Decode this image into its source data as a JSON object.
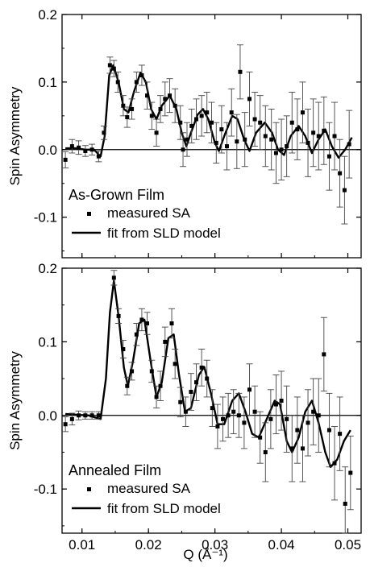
{
  "chart_data": [
    {
      "type": "scatter",
      "panel_label": "As-Grown Film",
      "ylabel": "Spin Asymmetry",
      "xlabel": "",
      "xlim": [
        0.007,
        0.052
      ],
      "ylim": [
        -0.16,
        0.2
      ],
      "xticks": [
        0.01,
        0.02,
        0.03,
        0.04,
        0.05
      ],
      "xtick_labels": [
        "",
        "",
        "",
        "",
        ""
      ],
      "yticks": [
        0.2,
        0.1,
        0.0,
        -0.1
      ],
      "ytick_labels": [
        "0.2",
        "0.1",
        "0.0",
        "-0.1"
      ],
      "reference_line_y": 0,
      "legend": [
        "measured SA",
        "fit from SLD model"
      ],
      "measured": [
        {
          "x": 0.0075,
          "y": -0.015,
          "err": 0.012
        },
        {
          "x": 0.0085,
          "y": 0.005,
          "err": 0.01
        },
        {
          "x": 0.0095,
          "y": 0.003,
          "err": 0.01
        },
        {
          "x": 0.0105,
          "y": -0.002,
          "err": 0.008
        },
        {
          "x": 0.0115,
          "y": 0.0,
          "err": 0.008
        },
        {
          "x": 0.0125,
          "y": -0.01,
          "err": 0.008
        },
        {
          "x": 0.0133,
          "y": 0.025,
          "err": 0.01
        },
        {
          "x": 0.0142,
          "y": 0.125,
          "err": 0.012
        },
        {
          "x": 0.0148,
          "y": 0.12,
          "err": 0.012
        },
        {
          "x": 0.0154,
          "y": 0.1,
          "err": 0.015
        },
        {
          "x": 0.0162,
          "y": 0.065,
          "err": 0.015
        },
        {
          "x": 0.0168,
          "y": 0.048,
          "err": 0.015
        },
        {
          "x": 0.0175,
          "y": 0.06,
          "err": 0.015
        },
        {
          "x": 0.0182,
          "y": 0.1,
          "err": 0.015
        },
        {
          "x": 0.019,
          "y": 0.11,
          "err": 0.015
        },
        {
          "x": 0.0198,
          "y": 0.08,
          "err": 0.02
        },
        {
          "x": 0.0205,
          "y": 0.05,
          "err": 0.02
        },
        {
          "x": 0.0212,
          "y": 0.025,
          "err": 0.02
        },
        {
          "x": 0.0218,
          "y": 0.06,
          "err": 0.02
        },
        {
          "x": 0.0225,
          "y": 0.075,
          "err": 0.025
        },
        {
          "x": 0.0232,
          "y": 0.08,
          "err": 0.025
        },
        {
          "x": 0.024,
          "y": 0.065,
          "err": 0.025
        },
        {
          "x": 0.0248,
          "y": 0.04,
          "err": 0.025
        },
        {
          "x": 0.0252,
          "y": 0.0,
          "err": 0.025
        },
        {
          "x": 0.0258,
          "y": 0.015,
          "err": 0.025
        },
        {
          "x": 0.0265,
          "y": 0.035,
          "err": 0.025
        },
        {
          "x": 0.0272,
          "y": 0.045,
          "err": 0.03
        },
        {
          "x": 0.028,
          "y": 0.05,
          "err": 0.03
        },
        {
          "x": 0.0288,
          "y": 0.055,
          "err": 0.03
        },
        {
          "x": 0.0295,
          "y": 0.04,
          "err": 0.03
        },
        {
          "x": 0.0302,
          "y": 0.01,
          "err": 0.03
        },
        {
          "x": 0.031,
          "y": 0.03,
          "err": 0.035
        },
        {
          "x": 0.0318,
          "y": 0.005,
          "err": 0.035
        },
        {
          "x": 0.0325,
          "y": 0.055,
          "err": 0.035
        },
        {
          "x": 0.0333,
          "y": 0.012,
          "err": 0.04
        },
        {
          "x": 0.0338,
          "y": 0.115,
          "err": 0.04
        },
        {
          "x": 0.0345,
          "y": 0.015,
          "err": 0.04
        },
        {
          "x": 0.0352,
          "y": 0.075,
          "err": 0.04
        },
        {
          "x": 0.036,
          "y": 0.045,
          "err": 0.04
        },
        {
          "x": 0.0368,
          "y": 0.04,
          "err": 0.04
        },
        {
          "x": 0.0376,
          "y": 0.02,
          "err": 0.045
        },
        {
          "x": 0.0385,
          "y": 0.015,
          "err": 0.045
        },
        {
          "x": 0.0392,
          "y": -0.005,
          "err": 0.045
        },
        {
          "x": 0.04,
          "y": 0.0,
          "err": 0.045
        },
        {
          "x": 0.0408,
          "y": 0.005,
          "err": 0.045
        },
        {
          "x": 0.0416,
          "y": 0.04,
          "err": 0.045
        },
        {
          "x": 0.0424,
          "y": 0.03,
          "err": 0.045
        },
        {
          "x": 0.0432,
          "y": 0.055,
          "err": 0.045
        },
        {
          "x": 0.044,
          "y": 0.01,
          "err": 0.05
        },
        {
          "x": 0.0448,
          "y": 0.025,
          "err": 0.05
        },
        {
          "x": 0.0456,
          "y": 0.02,
          "err": 0.05
        },
        {
          "x": 0.0464,
          "y": 0.028,
          "err": 0.05
        },
        {
          "x": 0.0472,
          "y": -0.01,
          "err": 0.05
        },
        {
          "x": 0.048,
          "y": 0.02,
          "err": 0.05
        },
        {
          "x": 0.0488,
          "y": -0.035,
          "err": 0.05
        },
        {
          "x": 0.0495,
          "y": -0.06,
          "err": 0.05
        },
        {
          "x": 0.0502,
          "y": 0.008,
          "err": 0.05
        }
      ],
      "fit": [
        {
          "x": 0.0075,
          "y": 0.002
        },
        {
          "x": 0.009,
          "y": 0.002
        },
        {
          "x": 0.0105,
          "y": 0.0
        },
        {
          "x": 0.0118,
          "y": 0.0
        },
        {
          "x": 0.0128,
          "y": -0.01
        },
        {
          "x": 0.0134,
          "y": 0.02
        },
        {
          "x": 0.0141,
          "y": 0.11
        },
        {
          "x": 0.0147,
          "y": 0.125
        },
        {
          "x": 0.0155,
          "y": 0.1
        },
        {
          "x": 0.0163,
          "y": 0.06
        },
        {
          "x": 0.017,
          "y": 0.055
        },
        {
          "x": 0.0178,
          "y": 0.085
        },
        {
          "x": 0.0188,
          "y": 0.114
        },
        {
          "x": 0.0196,
          "y": 0.1
        },
        {
          "x": 0.0204,
          "y": 0.06
        },
        {
          "x": 0.0212,
          "y": 0.045
        },
        {
          "x": 0.022,
          "y": 0.065
        },
        {
          "x": 0.0232,
          "y": 0.08
        },
        {
          "x": 0.0242,
          "y": 0.06
        },
        {
          "x": 0.025,
          "y": 0.025
        },
        {
          "x": 0.0257,
          "y": 0.005
        },
        {
          "x": 0.0264,
          "y": 0.025
        },
        {
          "x": 0.0274,
          "y": 0.052
        },
        {
          "x": 0.0282,
          "y": 0.06
        },
        {
          "x": 0.029,
          "y": 0.045
        },
        {
          "x": 0.03,
          "y": 0.01
        },
        {
          "x": 0.0306,
          "y": -0.002
        },
        {
          "x": 0.0314,
          "y": 0.02
        },
        {
          "x": 0.0326,
          "y": 0.05
        },
        {
          "x": 0.0334,
          "y": 0.045
        },
        {
          "x": 0.0344,
          "y": 0.015
        },
        {
          "x": 0.0352,
          "y": -0.002
        },
        {
          "x": 0.0362,
          "y": 0.025
        },
        {
          "x": 0.0375,
          "y": 0.04
        },
        {
          "x": 0.0386,
          "y": 0.025
        },
        {
          "x": 0.0395,
          "y": 0.0
        },
        {
          "x": 0.0404,
          "y": -0.008
        },
        {
          "x": 0.0414,
          "y": 0.02
        },
        {
          "x": 0.0426,
          "y": 0.035
        },
        {
          "x": 0.0436,
          "y": 0.02
        },
        {
          "x": 0.0446,
          "y": -0.005
        },
        {
          "x": 0.0456,
          "y": 0.015
        },
        {
          "x": 0.0466,
          "y": 0.03
        },
        {
          "x": 0.0476,
          "y": 0.005
        },
        {
          "x": 0.0486,
          "y": -0.012
        },
        {
          "x": 0.0496,
          "y": 0.0
        },
        {
          "x": 0.0506,
          "y": 0.018
        }
      ]
    },
    {
      "type": "scatter",
      "panel_label": "Annealed Film",
      "ylabel": "Spin Asymmetry",
      "xlabel": "Q (Å⁻¹)",
      "xlim": [
        0.007,
        0.052
      ],
      "ylim": [
        -0.16,
        0.2
      ],
      "xticks": [
        0.01,
        0.02,
        0.03,
        0.04,
        0.05
      ],
      "xtick_labels": [
        "0.01",
        "0.02",
        "0.03",
        "0.04",
        "0.05"
      ],
      "yticks": [
        0.2,
        0.1,
        0.0,
        -0.1
      ],
      "ytick_labels": [
        "0.2",
        "0.1",
        "0.0",
        "-0.1"
      ],
      "reference_line_y": 0,
      "legend": [
        "measured SA",
        "fit from SLD model"
      ],
      "measured": [
        {
          "x": 0.0075,
          "y": -0.012,
          "err": 0.01
        },
        {
          "x": 0.0085,
          "y": -0.005,
          "err": 0.008
        },
        {
          "x": 0.0095,
          "y": 0.0,
          "err": 0.006
        },
        {
          "x": 0.0105,
          "y": 0.0,
          "err": 0.005
        },
        {
          "x": 0.0115,
          "y": 0.0,
          "err": 0.005
        },
        {
          "x": 0.0125,
          "y": 0.0,
          "err": 0.005
        },
        {
          "x": 0.0148,
          "y": 0.187,
          "err": 0.01
        },
        {
          "x": 0.0155,
          "y": 0.135,
          "err": 0.01
        },
        {
          "x": 0.0162,
          "y": 0.09,
          "err": 0.012
        },
        {
          "x": 0.0168,
          "y": 0.04,
          "err": 0.012
        },
        {
          "x": 0.0175,
          "y": 0.06,
          "err": 0.012
        },
        {
          "x": 0.0182,
          "y": 0.11,
          "err": 0.015
        },
        {
          "x": 0.019,
          "y": 0.13,
          "err": 0.015
        },
        {
          "x": 0.0198,
          "y": 0.125,
          "err": 0.015
        },
        {
          "x": 0.0205,
          "y": 0.06,
          "err": 0.015
        },
        {
          "x": 0.0212,
          "y": 0.025,
          "err": 0.015
        },
        {
          "x": 0.0218,
          "y": 0.04,
          "err": 0.02
        },
        {
          "x": 0.0225,
          "y": 0.1,
          "err": 0.02
        },
        {
          "x": 0.0235,
          "y": 0.125,
          "err": 0.02
        },
        {
          "x": 0.024,
          "y": 0.07,
          "err": 0.02
        },
        {
          "x": 0.0248,
          "y": 0.018,
          "err": 0.02
        },
        {
          "x": 0.0256,
          "y": 0.005,
          "err": 0.02
        },
        {
          "x": 0.0264,
          "y": 0.032,
          "err": 0.025
        },
        {
          "x": 0.0272,
          "y": 0.045,
          "err": 0.025
        },
        {
          "x": 0.028,
          "y": 0.065,
          "err": 0.025
        },
        {
          "x": 0.0288,
          "y": 0.05,
          "err": 0.025
        },
        {
          "x": 0.0296,
          "y": 0.01,
          "err": 0.025
        },
        {
          "x": 0.0304,
          "y": -0.015,
          "err": 0.03
        },
        {
          "x": 0.0312,
          "y": -0.005,
          "err": 0.03
        },
        {
          "x": 0.032,
          "y": 0.0,
          "err": 0.03
        },
        {
          "x": 0.0328,
          "y": 0.005,
          "err": 0.03
        },
        {
          "x": 0.0336,
          "y": 0.0,
          "err": 0.03
        },
        {
          "x": 0.0344,
          "y": -0.01,
          "err": 0.035
        },
        {
          "x": 0.0352,
          "y": 0.035,
          "err": 0.035
        },
        {
          "x": 0.036,
          "y": 0.005,
          "err": 0.035
        },
        {
          "x": 0.0368,
          "y": -0.03,
          "err": 0.035
        },
        {
          "x": 0.0376,
          "y": -0.05,
          "err": 0.04
        },
        {
          "x": 0.0384,
          "y": -0.005,
          "err": 0.04
        },
        {
          "x": 0.0392,
          "y": 0.015,
          "err": 0.04
        },
        {
          "x": 0.04,
          "y": 0.02,
          "err": 0.04
        },
        {
          "x": 0.0408,
          "y": -0.005,
          "err": 0.045
        },
        {
          "x": 0.0416,
          "y": -0.045,
          "err": 0.045
        },
        {
          "x": 0.0424,
          "y": -0.02,
          "err": 0.045
        },
        {
          "x": 0.0432,
          "y": -0.045,
          "err": 0.045
        },
        {
          "x": 0.044,
          "y": -0.01,
          "err": 0.045
        },
        {
          "x": 0.0448,
          "y": 0.005,
          "err": 0.045
        },
        {
          "x": 0.0456,
          "y": 0.0,
          "err": 0.05
        },
        {
          "x": 0.0464,
          "y": 0.083,
          "err": 0.05
        },
        {
          "x": 0.0472,
          "y": -0.02,
          "err": 0.05
        },
        {
          "x": 0.048,
          "y": -0.065,
          "err": 0.05
        },
        {
          "x": 0.0488,
          "y": -0.025,
          "err": 0.05
        },
        {
          "x": 0.0496,
          "y": -0.12,
          "err": 0.05
        },
        {
          "x": 0.0504,
          "y": -0.078,
          "err": 0.05
        }
      ],
      "fit": [
        {
          "x": 0.0075,
          "y": 0.002
        },
        {
          "x": 0.009,
          "y": 0.001
        },
        {
          "x": 0.011,
          "y": 0.0
        },
        {
          "x": 0.0128,
          "y": -0.005
        },
        {
          "x": 0.0136,
          "y": 0.05
        },
        {
          "x": 0.0142,
          "y": 0.14
        },
        {
          "x": 0.0148,
          "y": 0.183
        },
        {
          "x": 0.0155,
          "y": 0.135
        },
        {
          "x": 0.0163,
          "y": 0.065
        },
        {
          "x": 0.0169,
          "y": 0.04
        },
        {
          "x": 0.0177,
          "y": 0.075
        },
        {
          "x": 0.0186,
          "y": 0.125
        },
        {
          "x": 0.0194,
          "y": 0.13
        },
        {
          "x": 0.0203,
          "y": 0.075
        },
        {
          "x": 0.0212,
          "y": 0.025
        },
        {
          "x": 0.022,
          "y": 0.045
        },
        {
          "x": 0.023,
          "y": 0.105
        },
        {
          "x": 0.0238,
          "y": 0.11
        },
        {
          "x": 0.0246,
          "y": 0.055
        },
        {
          "x": 0.0255,
          "y": 0.005
        },
        {
          "x": 0.0264,
          "y": 0.01
        },
        {
          "x": 0.0276,
          "y": 0.055
        },
        {
          "x": 0.0284,
          "y": 0.066
        },
        {
          "x": 0.0294,
          "y": 0.03
        },
        {
          "x": 0.0304,
          "y": -0.012
        },
        {
          "x": 0.0314,
          "y": -0.012
        },
        {
          "x": 0.0326,
          "y": 0.02
        },
        {
          "x": 0.0336,
          "y": 0.03
        },
        {
          "x": 0.0346,
          "y": 0.005
        },
        {
          "x": 0.0356,
          "y": -0.025
        },
        {
          "x": 0.0366,
          "y": -0.03
        },
        {
          "x": 0.0378,
          "y": -0.005
        },
        {
          "x": 0.039,
          "y": 0.02
        },
        {
          "x": 0.0398,
          "y": 0.015
        },
        {
          "x": 0.0408,
          "y": -0.035
        },
        {
          "x": 0.0416,
          "y": -0.05
        },
        {
          "x": 0.0426,
          "y": -0.03
        },
        {
          "x": 0.0436,
          "y": 0.005
        },
        {
          "x": 0.0446,
          "y": 0.02
        },
        {
          "x": 0.0456,
          "y": -0.01
        },
        {
          "x": 0.0466,
          "y": -0.05
        },
        {
          "x": 0.0474,
          "y": -0.07
        },
        {
          "x": 0.0484,
          "y": -0.06
        },
        {
          "x": 0.0494,
          "y": -0.035
        },
        {
          "x": 0.0504,
          "y": -0.02
        }
      ]
    }
  ]
}
